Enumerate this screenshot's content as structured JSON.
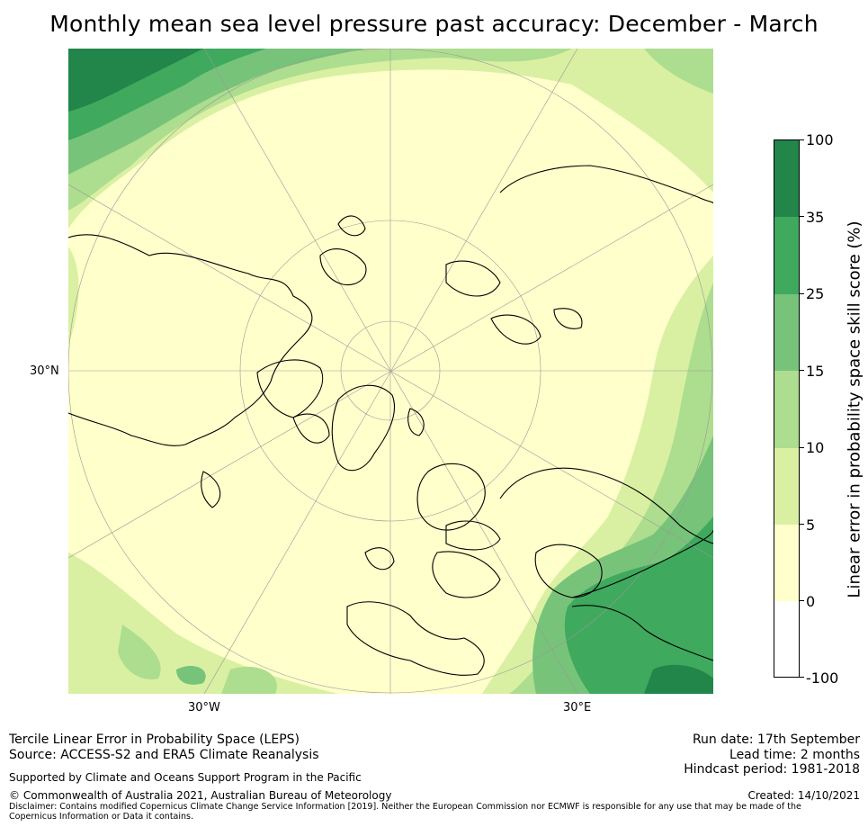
{
  "title": "Monthly mean sea level pressure past accuracy: December - March",
  "map": {
    "lat_labels": [
      "30°N"
    ],
    "lon_labels": [
      "30°W",
      "30°E"
    ]
  },
  "colorbar": {
    "title": "Linear error in probability space skill score (%)",
    "tick_labels": [
      "100",
      "35",
      "25",
      "15",
      "10",
      "5",
      "0",
      "-100"
    ],
    "bins": [
      {
        "range": "35 to 100",
        "color": "#22854a"
      },
      {
        "range": "25 to 35",
        "color": "#3fa95e"
      },
      {
        "range": "15 to 25",
        "color": "#78c37a"
      },
      {
        "range": "10 to 15",
        "color": "#addd8e"
      },
      {
        "range": "5 to 10",
        "color": "#d9f0a3"
      },
      {
        "range": "0 to 5",
        "color": "#ffffcc"
      },
      {
        "range": "-100 to 0",
        "color": "#ffffff"
      }
    ]
  },
  "footer": {
    "line1": "Tercile Linear Error in Probability Space (LEPS)",
    "line2": "Source: ACCESS-S2 and ERA5 Climate Reanalysis",
    "support": "Supported by Climate and Oceans Support Program in the Pacific",
    "copyright": "© Commonwealth of Australia 2021, Australian Bureau of Meteorology",
    "disclaimer": "Disclaimer: Contains modified Copernicus Climate Change Service Information [2019]. Neither the European Commission nor ECMWF is responsible for any use that may be made of the Copernicus Information or Data it contains.",
    "run_date": "Run date: 17th September",
    "lead_time": "Lead time: 2 months",
    "hindcast": "Hindcast period: 1981-2018",
    "created": "Created: 14/10/2021"
  }
}
